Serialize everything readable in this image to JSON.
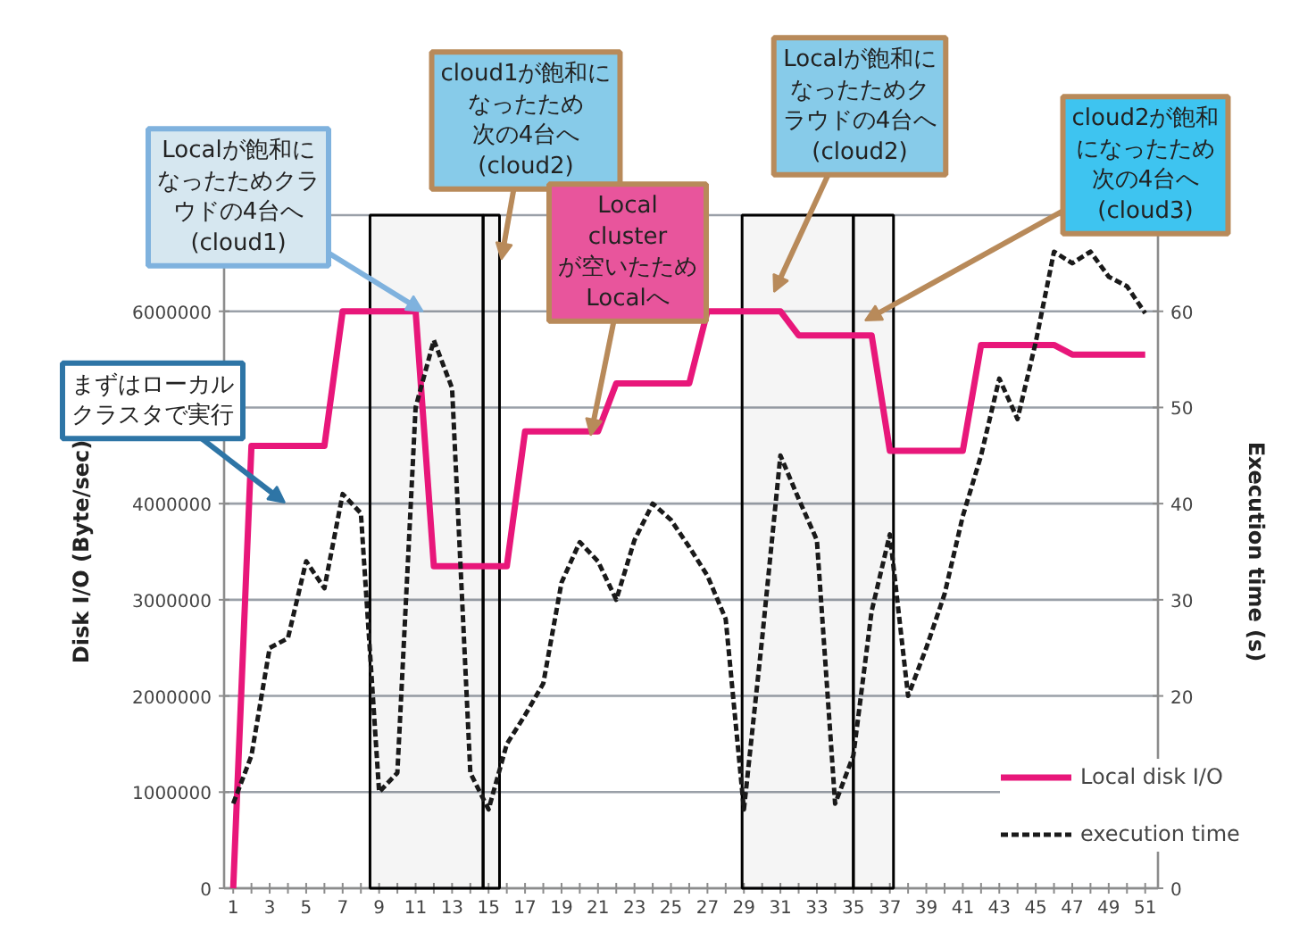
{
  "chart_data": {
    "type": "line",
    "ylabel": "Disk I/O (Byte/sec)",
    "y2label": "Execution time (s)",
    "x": [
      1,
      2,
      3,
      4,
      5,
      6,
      7,
      8,
      9,
      10,
      11,
      12,
      13,
      14,
      15,
      16,
      17,
      18,
      19,
      20,
      21,
      22,
      23,
      24,
      25,
      26,
      27,
      28,
      29,
      30,
      31,
      32,
      33,
      34,
      35,
      36,
      37,
      38,
      39,
      40,
      41,
      42,
      43,
      44,
      45,
      46,
      47,
      48,
      49,
      50,
      51
    ],
    "xlim": [
      0.5,
      51.7
    ],
    "xticks": [
      1,
      {
        "value": 2,
        "label": null
      },
      3,
      {
        "value": 4,
        "label": null
      },
      5,
      {
        "value": 6,
        "label": null
      },
      7,
      {
        "value": 8,
        "label": null
      },
      9,
      {
        "value": 10,
        "label": null
      },
      11,
      {
        "value": 12,
        "label": null
      },
      13,
      {
        "value": 14,
        "label": null
      },
      15,
      {
        "value": 16,
        "label": null
      },
      17,
      {
        "value": 18,
        "label": null
      },
      19,
      {
        "value": 20,
        "label": null
      },
      21,
      {
        "value": 22,
        "label": null
      },
      23,
      {
        "value": 24,
        "label": null
      },
      25,
      {
        "value": 26,
        "label": null
      },
      27,
      {
        "value": 28,
        "label": null
      },
      29,
      {
        "value": 30,
        "label": null
      },
      31,
      {
        "value": 32,
        "label": null
      },
      33,
      {
        "value": 34,
        "label": null
      },
      35,
      {
        "value": 36,
        "label": null
      },
      37,
      {
        "value": 38,
        "label": null
      },
      39,
      {
        "value": 40,
        "label": null
      },
      41,
      {
        "value": 42,
        "label": null
      },
      43,
      {
        "value": 44,
        "label": null
      },
      45,
      {
        "value": 46,
        "label": null
      },
      47,
      {
        "value": 48,
        "label": null
      },
      49,
      {
        "value": 50,
        "label": null
      },
      51
    ],
    "ylim": [
      0,
      7000000
    ],
    "yticks": [
      0,
      1000000,
      2000000,
      3000000,
      4000000,
      {
        "value": 5000000,
        "label": null
      },
      6000000,
      {
        "value": 7000000,
        "label": null
      }
    ],
    "y2lim": [
      0,
      70
    ],
    "y2ticks": [
      0,
      {
        "value": 10,
        "label": null
      },
      20,
      30,
      40,
      50,
      60,
      {
        "value": 70,
        "label": null
      }
    ],
    "series": [
      {
        "name": "Local disk I/O",
        "color": "#e8177a",
        "line_style": "solid",
        "values": [
          0,
          4600000,
          4600000,
          4600000,
          4600000,
          4600000,
          6000000,
          6000000,
          6000000,
          6000000,
          6000000,
          3350000,
          3350000,
          3350000,
          3350000,
          3350000,
          4750000,
          4750000,
          4750000,
          4750000,
          4750000,
          5250000,
          5250000,
          5250000,
          5250000,
          5250000,
          6000000,
          6000000,
          6000000,
          6000000,
          6000000,
          5750000,
          5750000,
          5750000,
          5750000,
          5750000,
          4550000,
          4550000,
          4550000,
          4550000,
          4550000,
          5650000,
          5650000,
          5650000,
          5650000,
          5650000,
          5550000,
          5550000,
          5550000,
          5550000,
          5550000
        ]
      },
      {
        "name": "execution time",
        "color": "#1a1a1a",
        "line_style": "dashed",
        "axis": "y2",
        "values": [
          8.8,
          13.8,
          25,
          26,
          34,
          31.2,
          41,
          39,
          10,
          12,
          50,
          57,
          52,
          12,
          8.2,
          15,
          18,
          21.3,
          31.8,
          36,
          34,
          30,
          36.2,
          40,
          38.3,
          35.5,
          32.5,
          28,
          8.2,
          26,
          45,
          40.5,
          36.2,
          8.8,
          13.8,
          28.8,
          36.8,
          20,
          25,
          30.6,
          38.7,
          45,
          53,
          48.8,
          56.8,
          66.2,
          65,
          66.2,
          63.6,
          62.6,
          59.8
        ]
      }
    ],
    "bands": [
      {
        "axis": "x",
        "from": 8.5,
        "to": 14.7,
        "color": "#000000"
      },
      {
        "axis": "x",
        "from": 14.7,
        "to": 15.6,
        "color": "#000000"
      },
      {
        "axis": "x",
        "from": 28.9,
        "to": 35,
        "color": "#000000"
      },
      {
        "axis": "x",
        "from": 35,
        "to": 37.2,
        "color": "#000000"
      }
    ],
    "annotations": [
      "まずはローカルクラスタで実行",
      {
        "text": "Localが飽和になったためクラウドの4台へ(cloud1)",
        "x": 11.4,
        "y": 6000000
      },
      {
        "text": "cloud1が飽和になったため次の4台へ(cloud2)",
        "x": 15.7,
        "y": 6540000
      },
      {
        "text": "Local clusterが空いたためLocalへ",
        "x": 20.6,
        "y": 4710000
      },
      "Localが飽和になったためクラウドの4台へ(cloud2)",
      "cloud2が飽和になったため次の4台へ(cloud3)"
    ],
    "grid": "y",
    "legend": "bottom right"
  }
}
